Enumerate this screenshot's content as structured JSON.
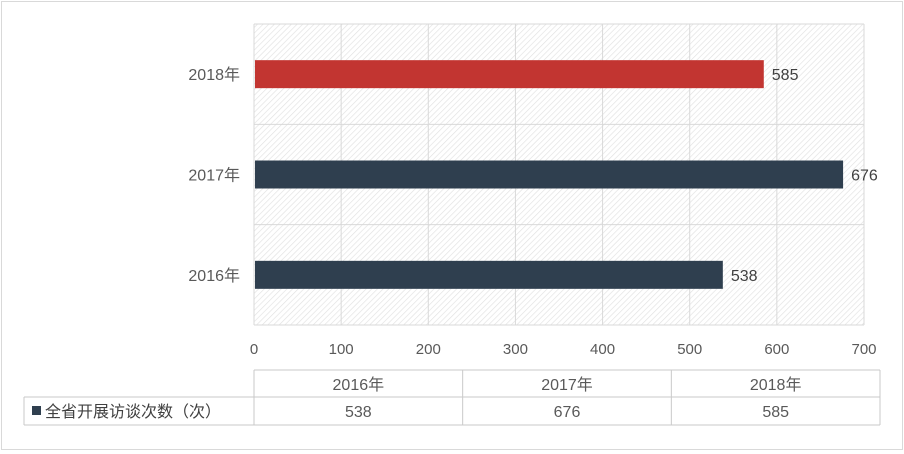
{
  "chart_data": {
    "type": "bar",
    "orientation": "horizontal",
    "categories": [
      "2016年",
      "2017年",
      "2018年"
    ],
    "series": [
      {
        "name": "全省开展访谈次数（次）",
        "values": [
          538,
          676,
          585
        ]
      }
    ],
    "bar_colors": [
      "#2f3f4f",
      "#2f3f4f",
      "#c23531"
    ],
    "xlim": [
      0,
      700
    ],
    "xticks": [
      "0",
      "100",
      "200",
      "300",
      "400",
      "500",
      "600",
      "700"
    ],
    "grid": true,
    "data_labels": true,
    "data_table": {
      "header": [
        "2016年",
        "2017年",
        "2018年"
      ],
      "row_label": "全省开展访谈次数（次）",
      "row_values": [
        "538",
        "676",
        "585"
      ]
    }
  }
}
